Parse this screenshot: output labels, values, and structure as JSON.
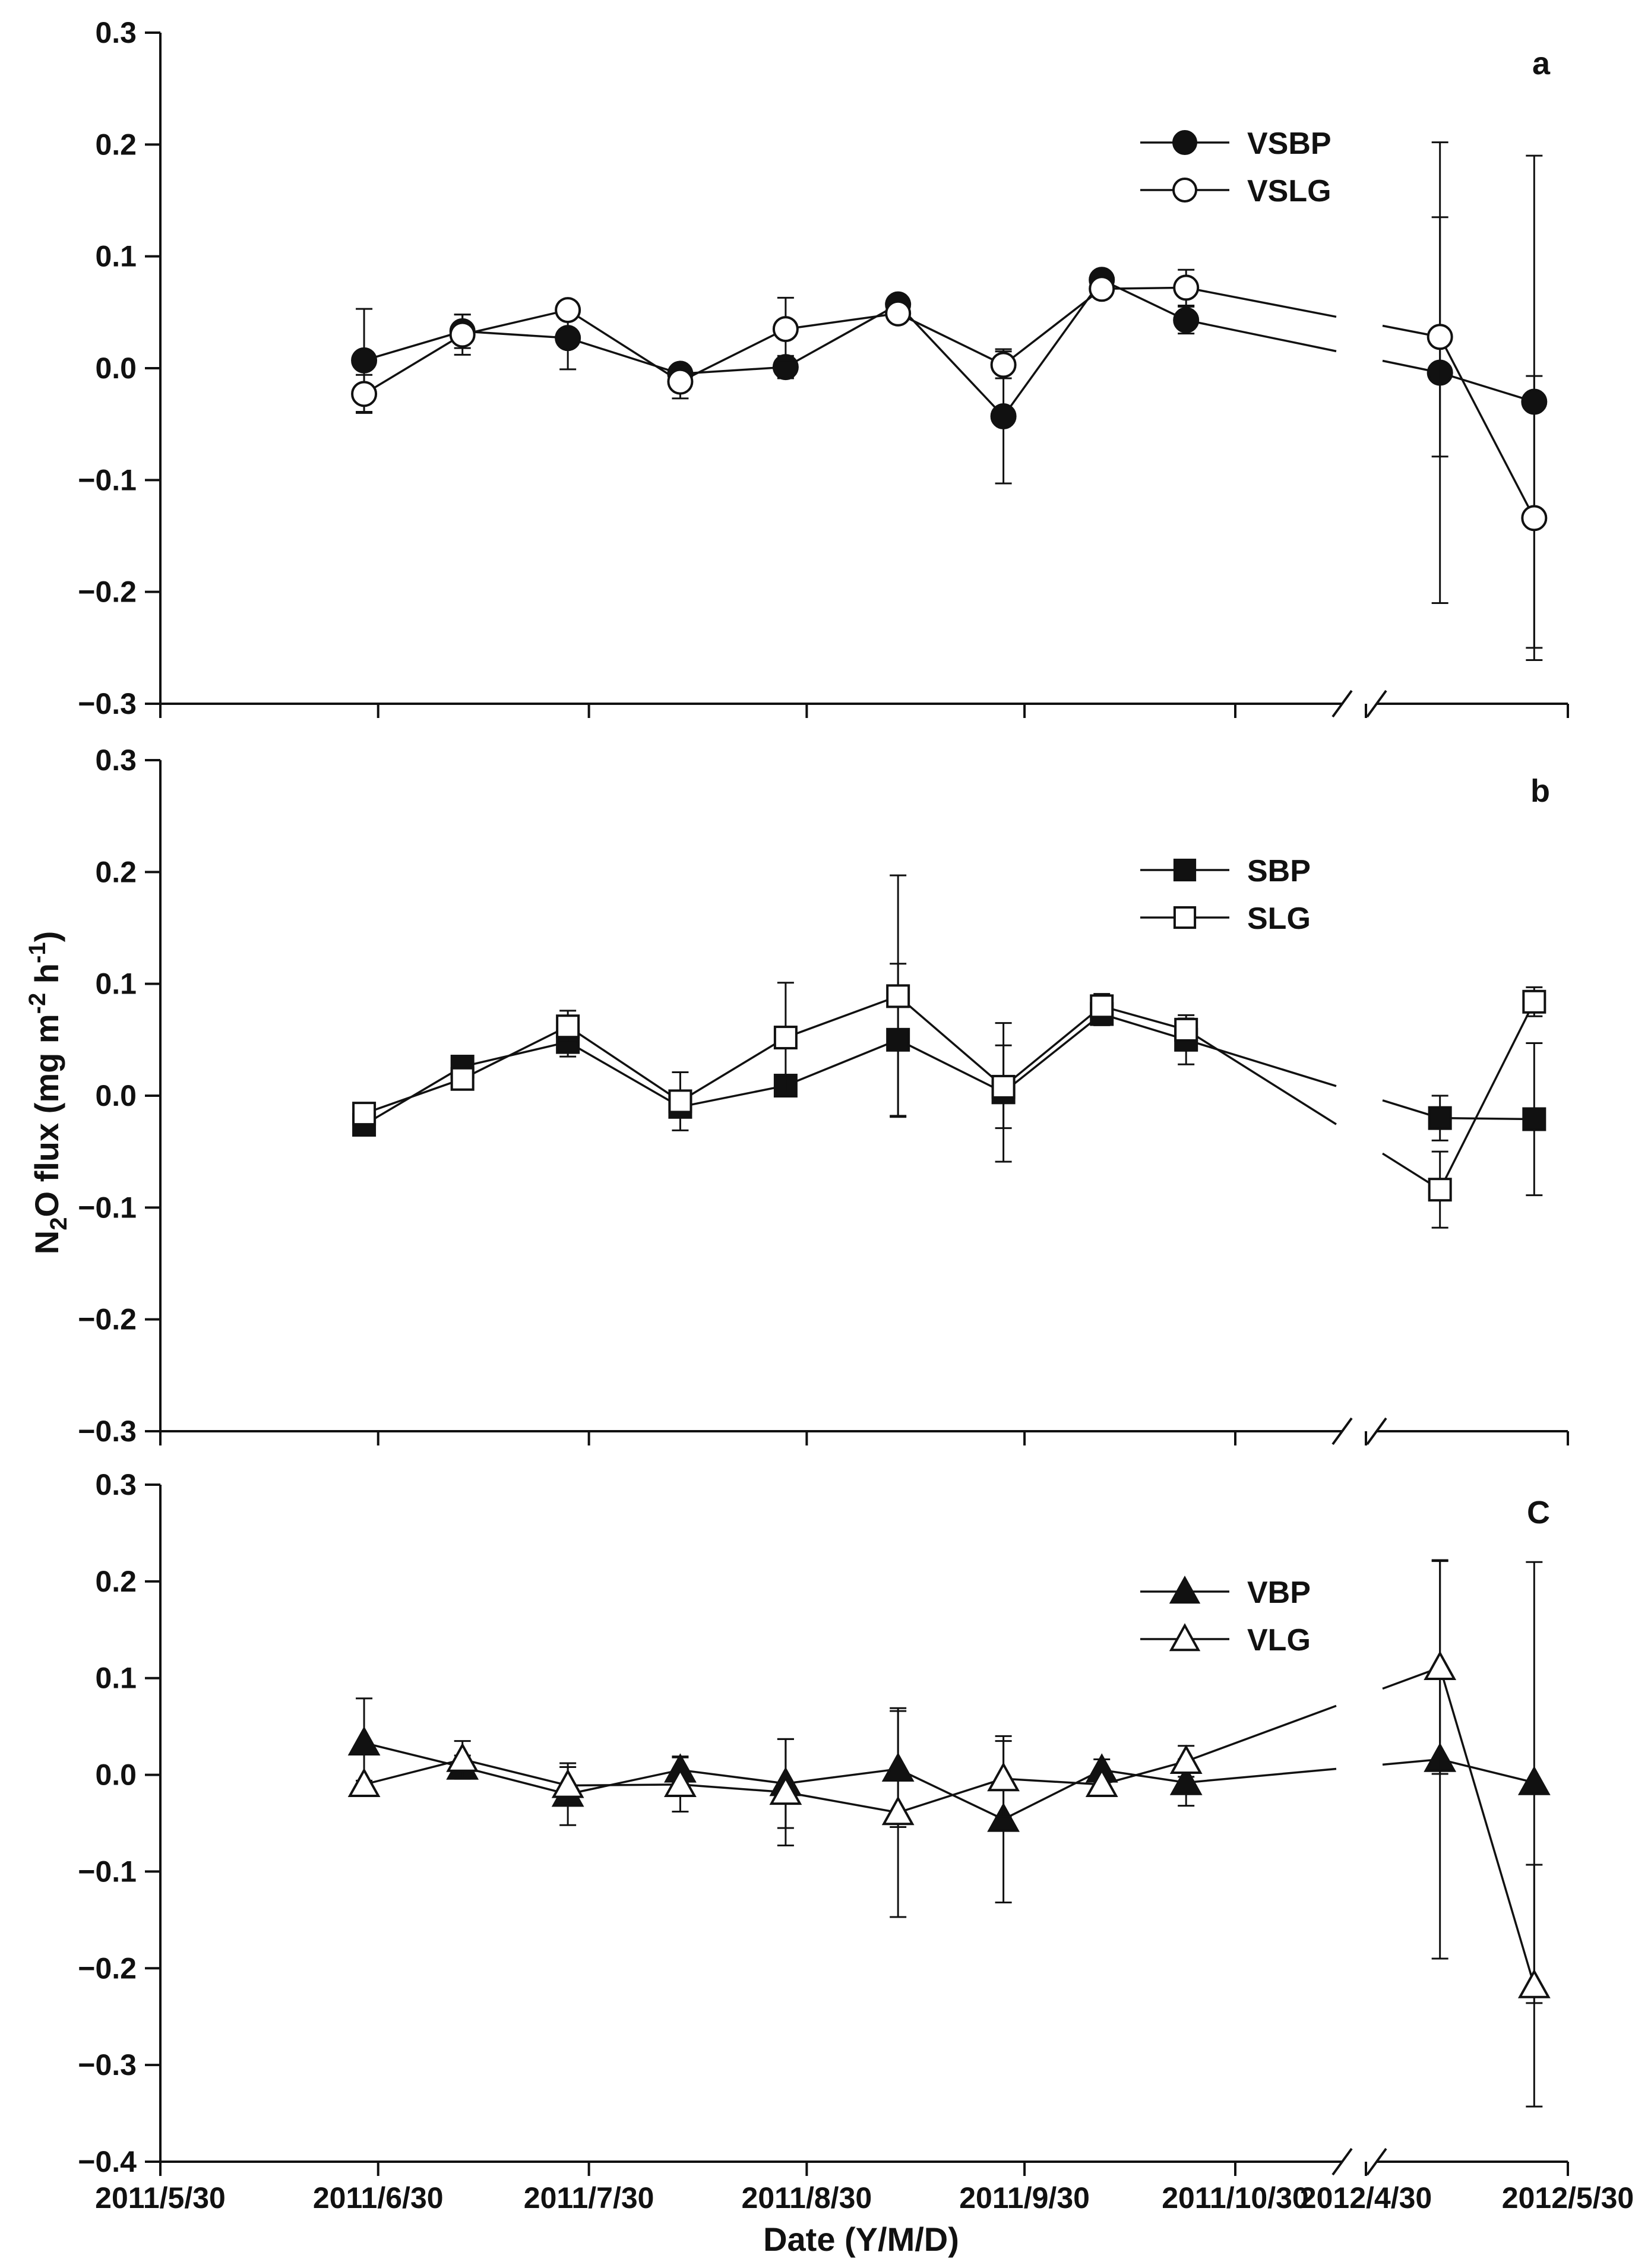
{
  "figure": {
    "y_axis_label_parts": [
      "N",
      "2",
      "O flux (mg m",
      "-2",
      " h",
      "-1",
      ")"
    ],
    "x_axis_label": "Date (Y/M/D)",
    "x_tick_labels": [
      "2011/5/30",
      "2011/6/30",
      "2011/7/30",
      "2011/8/30",
      "2011/9/30",
      "2011/10/30",
      "2012/4/30",
      "2012/5/30"
    ],
    "series_color": "#111111",
    "open_fill": "#ffffff"
  },
  "chart_data": [
    {
      "type": "line",
      "panel": "a",
      "ylim": [
        -0.3,
        0.3
      ],
      "yticks": [
        -0.3,
        -0.2,
        -0.1,
        0.0,
        0.1,
        0.2,
        0.3
      ],
      "y_tick_labels": [
        "−0.3",
        "−0.2",
        "−0.1",
        "0.0",
        "0.1",
        "0.2",
        "0.3"
      ],
      "x_tick_labels": [
        "2011/5/30",
        "2011/6/30",
        "2011/7/30",
        "2011/8/30",
        "2011/9/30",
        "2011/10/30",
        "2012/4/30",
        "2012/5/30"
      ],
      "x_break": "between 2011/10/30 and 2012/4/30",
      "x": [
        "2011/6/28",
        "2011/7/12",
        "2011/7/27",
        "2011/8/12",
        "2011/8/27",
        "2011/9/12",
        "2011/9/27",
        "2011/10/11",
        "2011/10/23",
        "2012/5/11",
        "2012/5/25"
      ],
      "series": [
        {
          "name": "VSBP",
          "marker": "circle",
          "filled": true,
          "values": [
            0.007,
            0.033,
            0.027,
            -0.005,
            0.001,
            0.057,
            -0.043,
            0.079,
            0.043,
            -0.004,
            -0.03
          ],
          "errors": [
            0.046,
            0.015,
            0.028,
            0.007,
            0.01,
            0.008,
            0.06,
            0.004,
            0.012,
            0.206,
            0.22
          ]
        },
        {
          "name": "VSLG",
          "marker": "circle",
          "filled": false,
          "values": [
            -0.023,
            0.03,
            0.052,
            -0.012,
            0.035,
            0.049,
            0.003,
            0.071,
            0.072,
            0.028,
            -0.134
          ],
          "errors": [
            0.017,
            0.018,
            0.003,
            0.015,
            0.028,
            0.006,
            0.012,
            0.004,
            0.016,
            0.107,
            0.127
          ]
        }
      ]
    },
    {
      "type": "line",
      "panel": "b",
      "ylim": [
        -0.3,
        0.3
      ],
      "yticks": [
        -0.3,
        -0.2,
        -0.1,
        0.0,
        0.1,
        0.2,
        0.3
      ],
      "y_tick_labels": [
        "−0.3",
        "−0.2",
        "−0.1",
        "0.0",
        "0.1",
        "0.2",
        "0.3"
      ],
      "x_tick_labels": [
        "2011/5/30",
        "2011/6/30",
        "2011/7/30",
        "2011/8/30",
        "2011/9/30",
        "2011/10/30",
        "2012/4/30",
        "2012/5/30"
      ],
      "x_break": "between 2011/10/30 and 2012/4/30",
      "x": [
        "2011/6/28",
        "2011/7/12",
        "2011/7/27",
        "2011/8/12",
        "2011/8/27",
        "2011/9/12",
        "2011/9/27",
        "2011/10/11",
        "2011/10/23",
        "2012/5/11",
        "2012/5/25"
      ],
      "series": [
        {
          "name": "SBP",
          "marker": "square",
          "filled": true,
          "values": [
            -0.026,
            0.026,
            0.048,
            -0.01,
            0.009,
            0.05,
            0.003,
            0.073,
            0.05,
            -0.02,
            -0.021
          ],
          "errors": [
            0.006,
            0.004,
            0.013,
            0.007,
            0.009,
            0.068,
            0.062,
            0.01,
            0.022,
            0.02,
            0.068
          ]
        },
        {
          "name": "SLG",
          "marker": "square",
          "filled": false,
          "values": [
            -0.016,
            0.015,
            0.062,
            -0.005,
            0.052,
            0.089,
            0.008,
            0.08,
            0.059,
            -0.084,
            0.084
          ],
          "errors": [
            0.008,
            0.008,
            0.014,
            0.026,
            0.049,
            0.108,
            0.037,
            0.011,
            0.01,
            0.034,
            0.013
          ]
        }
      ]
    },
    {
      "type": "line",
      "panel": "C",
      "ylim": [
        -0.4,
        0.3
      ],
      "yticks": [
        -0.4,
        -0.3,
        -0.2,
        -0.1,
        0.0,
        0.1,
        0.2,
        0.3
      ],
      "y_tick_labels": [
        "−0.4",
        "−0.3",
        "−0.2",
        "−0.1",
        "0.0",
        "0.1",
        "0.2",
        "0.3"
      ],
      "x_tick_labels": [
        "2011/5/30",
        "2011/6/30",
        "2011/7/30",
        "2011/8/30",
        "2011/9/30",
        "2011/10/30",
        "2012/4/30",
        "2012/5/30"
      ],
      "x_break": "between 2011/10/30 and 2012/4/30",
      "x": [
        "2011/6/28",
        "2011/7/12",
        "2011/7/27",
        "2011/8/12",
        "2011/8/27",
        "2011/9/12",
        "2011/9/27",
        "2011/10/11",
        "2011/10/23",
        "2012/5/11",
        "2012/5/25"
      ],
      "series": [
        {
          "name": "VBP",
          "marker": "triangle",
          "filled": true,
          "values": [
            0.033,
            0.008,
            -0.02,
            0.005,
            -0.009,
            0.006,
            -0.046,
            0.005,
            -0.008,
            0.016,
            -0.008
          ],
          "errors": [
            0.046,
            0.012,
            0.032,
            0.014,
            0.046,
            0.06,
            0.086,
            0.011,
            0.024,
            0.206,
            0.228
          ]
        },
        {
          "name": "VLG",
          "marker": "triangle",
          "filled": false,
          "values": [
            -0.01,
            0.016,
            -0.011,
            -0.01,
            -0.018,
            -0.039,
            -0.004,
            -0.01,
            0.014,
            0.111,
            -0.218
          ],
          "errors": [
            0.004,
            0.019,
            0.019,
            0.028,
            0.055,
            0.108,
            0.039,
            0.01,
            0.016,
            0.11,
            0.125
          ]
        }
      ]
    }
  ]
}
